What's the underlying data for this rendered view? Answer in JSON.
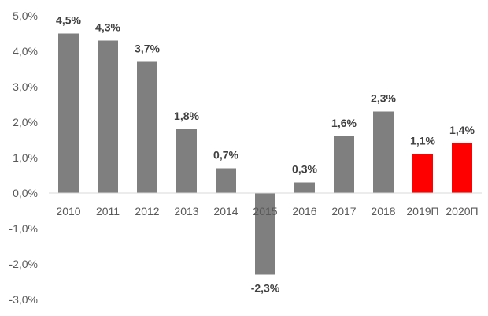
{
  "chart_data": {
    "type": "bar",
    "title": "",
    "xlabel": "",
    "ylabel": "",
    "ylim": [
      -3.0,
      5.0
    ],
    "y_ticks": [
      5.0,
      4.0,
      3.0,
      2.0,
      1.0,
      0.0,
      -1.0,
      -2.0,
      -3.0
    ],
    "y_tick_labels": [
      "5,0%",
      "4,0%",
      "3,0%",
      "2,0%",
      "1,0%",
      "0,0%",
      "-1,0%",
      "-2,0%",
      "-3,0%"
    ],
    "grid": false,
    "legend": "none",
    "categories": [
      "2010",
      "2011",
      "2012",
      "2013",
      "2014",
      "2015",
      "2016",
      "2017",
      "2018",
      "2019П",
      "2020П"
    ],
    "values": [
      4.5,
      4.3,
      3.7,
      1.8,
      0.7,
      -2.3,
      0.3,
      1.6,
      2.3,
      1.1,
      1.4
    ],
    "data_labels": [
      "4,5%",
      "4,3%",
      "3,7%",
      "1,8%",
      "0,7%",
      "-2,3%",
      "0,3%",
      "1,6%",
      "2,3%",
      "1,1%",
      "1,4%"
    ],
    "bar_colors": [
      "#7f7f7f",
      "#7f7f7f",
      "#7f7f7f",
      "#7f7f7f",
      "#7f7f7f",
      "#7f7f7f",
      "#7f7f7f",
      "#7f7f7f",
      "#7f7f7f",
      "#ff0000",
      "#ff0000"
    ]
  }
}
